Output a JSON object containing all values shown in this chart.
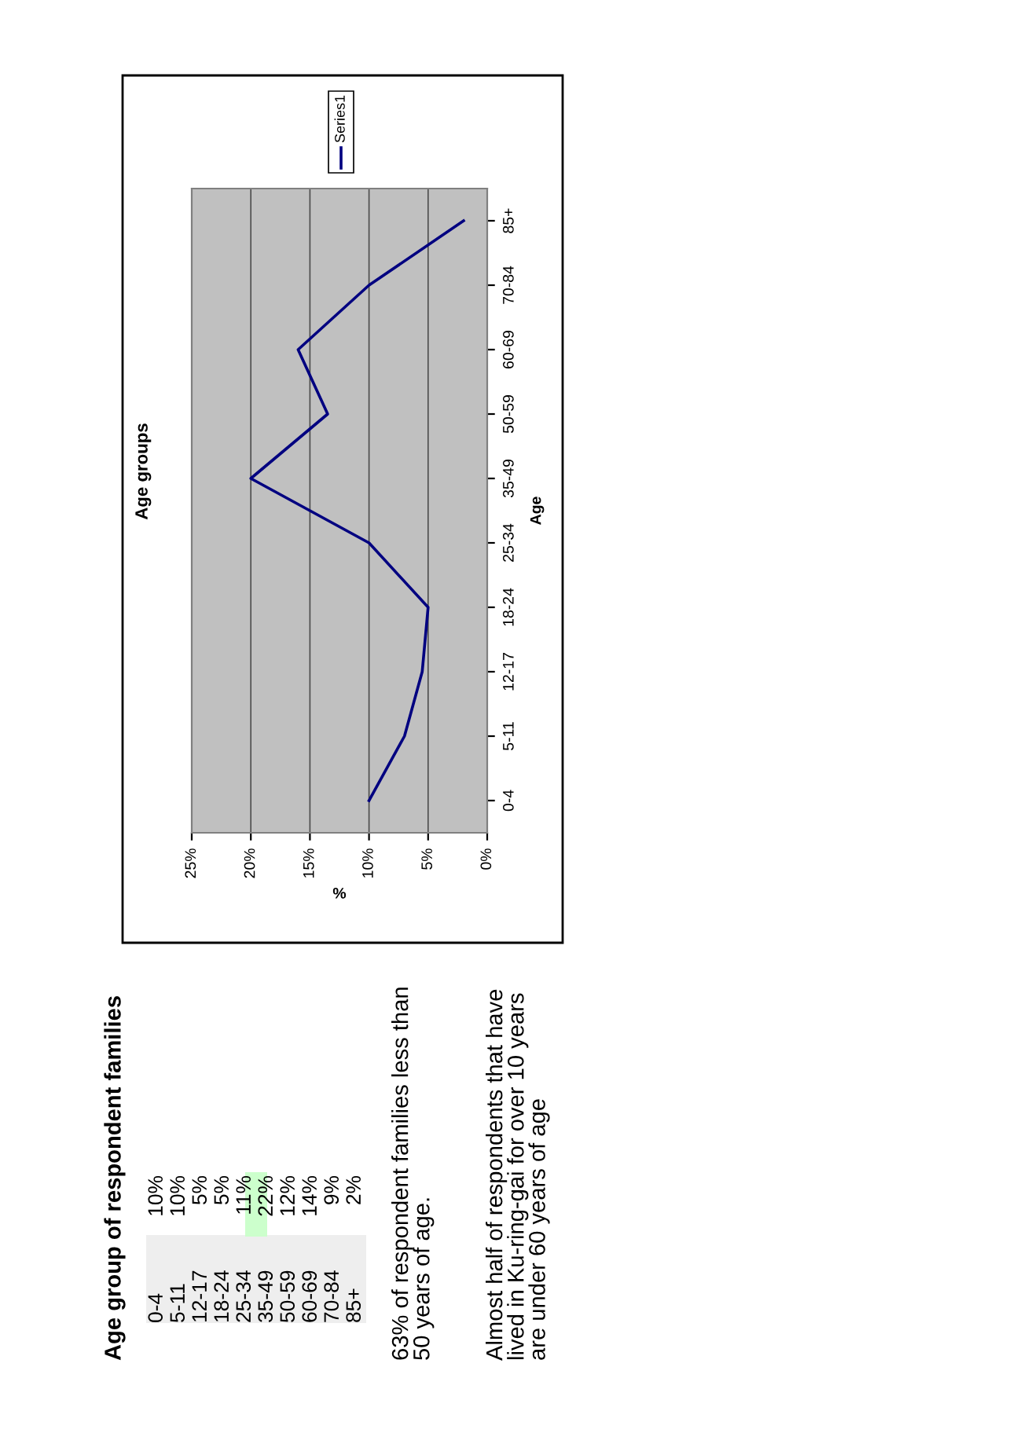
{
  "chart_data": {
    "type": "line",
    "orientation": "horizontal",
    "title": "Age groups",
    "xlabel": "%",
    "ylabel": "Age",
    "categories": [
      "85+",
      "70-84",
      "60-69",
      "50-59",
      "35-49",
      "25-34",
      "18-24",
      "12-17",
      "5-11",
      "0-4"
    ],
    "series": [
      {
        "name": "Series1",
        "color": "#000080",
        "values": [
          2,
          10,
          16,
          13.5,
          20,
          10,
          5,
          5.5,
          7,
          10
        ]
      }
    ],
    "xlim": [
      25,
      0
    ],
    "xticks": [
      {
        "value": 0,
        "label": "0%"
      },
      {
        "value": 5,
        "label": "5%"
      },
      {
        "value": 10,
        "label": "10%"
      },
      {
        "value": 15,
        "label": "15%"
      },
      {
        "value": 20,
        "label": "20%"
      },
      {
        "value": 25,
        "label": "25%"
      }
    ],
    "grid": "x",
    "legend": "right",
    "marker": "none",
    "line_style": "solid",
    "annotations": [
      "Age group of respondent families",
      "0-4",
      "10%",
      "5-11",
      "10%",
      "12-17",
      "5%",
      "18-24",
      "5%",
      "25-34",
      "11%",
      "35-49",
      "22%",
      "50-59",
      "12%",
      "60-69",
      "14%",
      "70-84",
      "9%",
      "85+",
      "2%",
      "63% of respondent families less than 50 years of age.",
      "Almost half of respondents that have lived in Ku-ring-gai for over 10 years are under 60 years of age"
    ]
  }
}
